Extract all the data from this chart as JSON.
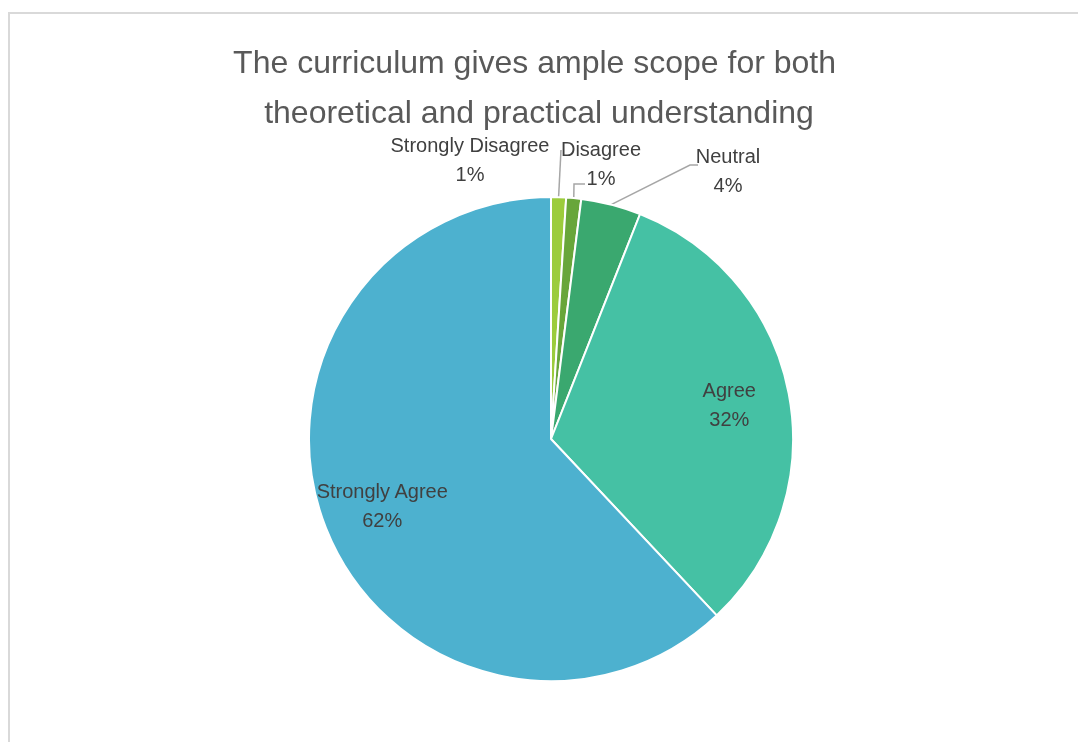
{
  "chart_data": {
    "type": "pie",
    "title": "The curriculum gives ample scope for both theoretical and practical understanding",
    "categories": [
      "Strongly Disagree",
      "Disagree",
      "Neutral",
      "Agree",
      "Strongly Agree"
    ],
    "values": [
      1,
      1,
      4,
      32,
      62
    ],
    "colors": [
      "#9ccc3c",
      "#68a63a",
      "#3aa86f",
      "#45c1a4",
      "#4db1cf"
    ],
    "value_labels": [
      "1%",
      "1%",
      "4%",
      "32%",
      "62%"
    ]
  }
}
